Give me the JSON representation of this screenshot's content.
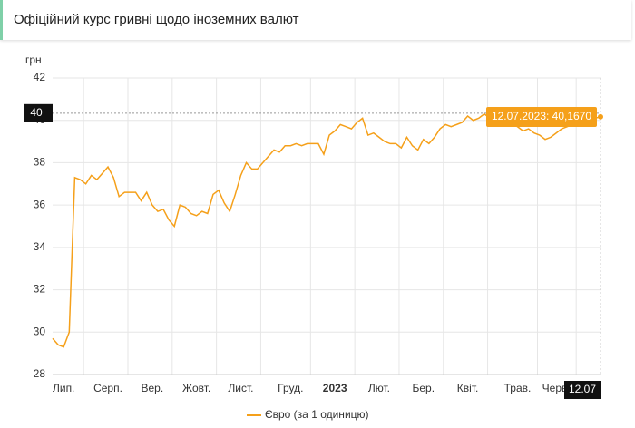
{
  "header": {
    "title": "Офіційний курс гривні щодо іноземних валют"
  },
  "chart_data": {
    "type": "line",
    "y_unit": "грн",
    "categories": [
      null,
      null,
      "Лип.",
      null,
      null,
      null,
      null,
      null,
      null,
      null,
      "Серп.",
      null,
      null,
      null,
      null,
      null,
      null,
      null,
      "Вер.",
      null,
      null,
      null,
      null,
      null,
      null,
      null,
      "Жовт.",
      null,
      null,
      null,
      null,
      null,
      null,
      null,
      "Лист.",
      null,
      null,
      null,
      null,
      null,
      null,
      null,
      null,
      "Груд.",
      null,
      null,
      null,
      null,
      null,
      null,
      null,
      "2023",
      null,
      null,
      null,
      null,
      null,
      null,
      null,
      "Лют.",
      null,
      null,
      null,
      null,
      null,
      null,
      null,
      "Бер.",
      null,
      null,
      null,
      null,
      null,
      null,
      null,
      "Квіт.",
      null,
      null,
      null,
      null,
      null,
      null,
      null,
      null,
      "Трав.",
      null,
      null,
      null,
      null,
      null,
      null,
      "Черв.",
      null,
      null,
      null,
      null,
      null,
      null,
      null,
      null
    ],
    "series": [
      {
        "name": "Євро (за 1 одиницю)",
        "color": "#f5a01a",
        "values": [
          29.7,
          29.4,
          29.3,
          30.0,
          37.3,
          37.2,
          37.0,
          37.4,
          37.2,
          37.5,
          37.8,
          37.3,
          36.4,
          36.6,
          36.6,
          36.6,
          36.2,
          36.6,
          36.0,
          35.7,
          35.8,
          35.3,
          35.0,
          36.0,
          35.9,
          35.6,
          35.5,
          35.7,
          35.6,
          36.5,
          36.7,
          36.1,
          35.7,
          36.5,
          37.4,
          38.0,
          37.7,
          37.7,
          38.0,
          38.3,
          38.6,
          38.5,
          38.8,
          38.8,
          38.9,
          38.8,
          38.9,
          38.9,
          38.9,
          38.4,
          39.3,
          39.5,
          39.8,
          39.7,
          39.6,
          39.9,
          40.1,
          39.3,
          39.4,
          39.2,
          39.0,
          38.9,
          38.9,
          38.7,
          39.2,
          38.8,
          38.6,
          39.1,
          38.9,
          39.2,
          39.6,
          39.8,
          39.7,
          39.8,
          39.9,
          40.2,
          40.0,
          40.1,
          40.3,
          40.1,
          40.0,
          40.2,
          40.0,
          39.8,
          39.7,
          39.5,
          39.6,
          39.4,
          39.3,
          39.1,
          39.2,
          39.4,
          39.6,
          39.7,
          39.8,
          39.9,
          40.0,
          40.0,
          40.1,
          40.167
        ]
      }
    ],
    "ylim": [
      28,
      42
    ],
    "yticks": [
      28,
      30,
      32,
      34,
      36,
      38,
      40,
      42
    ],
    "grid": true,
    "tooltip": {
      "text": "12.07.2023: 40,1670",
      "x_label": "12.07",
      "y_label": "40"
    }
  }
}
